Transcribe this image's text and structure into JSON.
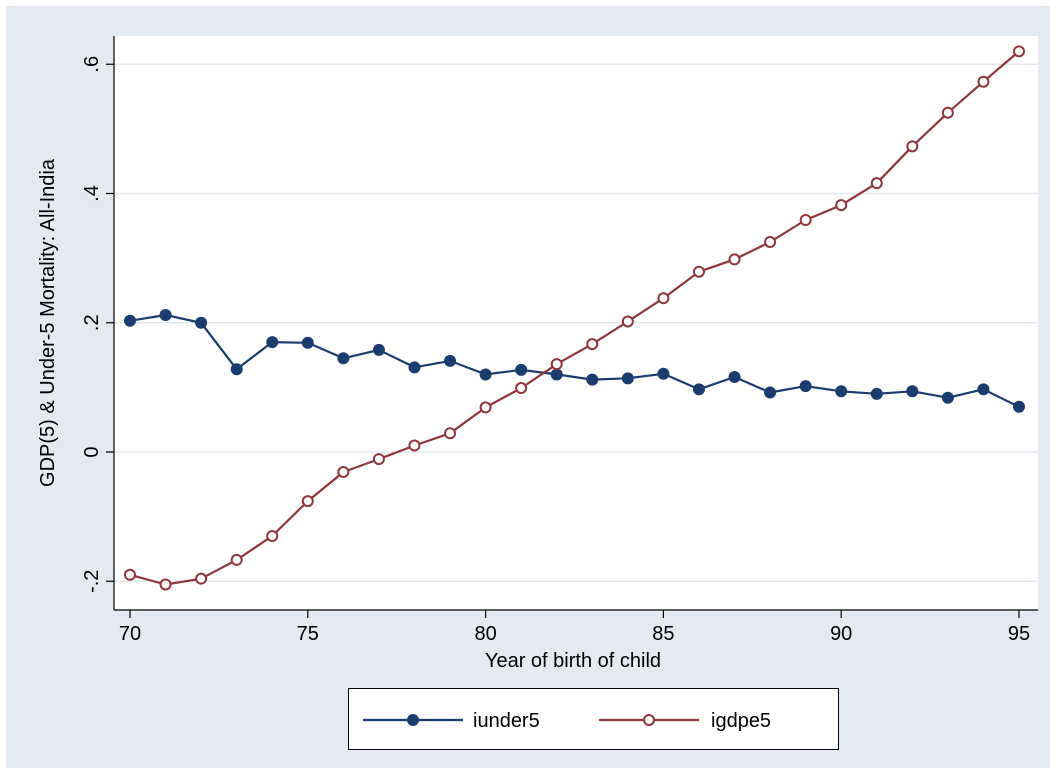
{
  "chart_data": {
    "type": "line",
    "xlabel": "Year of birth of child",
    "ylabel": "GDP(5) & Under-5 Mortality: All-India",
    "xlim": [
      70,
      95
    ],
    "ylim": [
      -0.2,
      0.6
    ],
    "x_ticks": [
      70,
      75,
      80,
      85,
      90,
      95
    ],
    "x_tick_labels": [
      "70",
      "75",
      "80",
      "85",
      "90",
      "95"
    ],
    "y_ticks": [
      -0.2,
      0,
      0.2,
      0.4,
      0.6
    ],
    "y_tick_labels": [
      "-.2",
      "0",
      ".2",
      ".4",
      ".6"
    ],
    "grid": true,
    "legend_position": "bottom",
    "x": [
      70,
      71,
      72,
      73,
      74,
      75,
      76,
      77,
      78,
      79,
      80,
      81,
      82,
      83,
      84,
      85,
      86,
      87,
      88,
      89,
      90,
      91,
      92,
      93,
      94,
      95
    ],
    "series": [
      {
        "name": "iunder5",
        "color": "#1a3c6e",
        "marker": "filled-circle",
        "values": [
          0.203,
          0.212,
          0.2,
          0.128,
          0.17,
          0.169,
          0.145,
          0.158,
          0.131,
          0.141,
          0.12,
          0.127,
          0.12,
          0.112,
          0.114,
          0.121,
          0.097,
          0.116,
          0.092,
          0.102,
          0.094,
          0.09,
          0.094,
          0.084,
          0.097,
          0.07
        ]
      },
      {
        "name": "igdpe5",
        "color": "#90353b",
        "marker": "hollow-circle",
        "values": [
          -0.19,
          -0.205,
          -0.196,
          -0.167,
          -0.13,
          -0.076,
          -0.031,
          -0.011,
          0.01,
          0.029,
          0.069,
          0.099,
          0.136,
          0.167,
          0.202,
          0.238,
          0.279,
          0.298,
          0.325,
          0.359,
          0.382,
          0.416,
          0.473,
          0.525,
          0.573,
          0.62
        ]
      }
    ]
  }
}
